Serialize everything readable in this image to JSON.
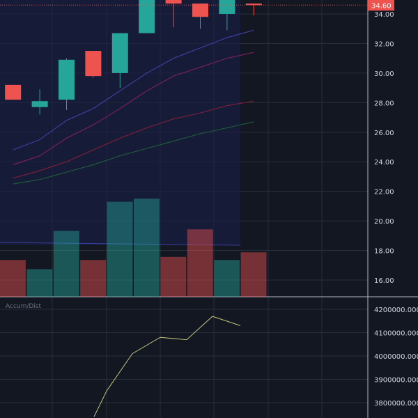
{
  "chart_data": [
    {
      "type": "candlestick",
      "ylim": [
        15,
        35
      ],
      "y_ticks": [
        "16.00",
        "18.00",
        "20.00",
        "22.00",
        "24.00",
        "26.00",
        "28.00",
        "30.00",
        "32.00",
        "34.00"
      ],
      "price_label": "34.60",
      "last_price": 34.6,
      "candles": [
        {
          "open": 29.2,
          "close": 28.2,
          "high": 29.2,
          "low": 28.2
        },
        {
          "open": 27.7,
          "close": 28.1,
          "high": 28.9,
          "low": 27.2
        },
        {
          "open": 28.2,
          "close": 30.9,
          "high": 31.0,
          "low": 27.5
        },
        {
          "open": 31.5,
          "close": 29.8,
          "high": 31.5,
          "low": 29.7
        },
        {
          "open": 30.0,
          "close": 32.7,
          "high": 32.7,
          "low": 29.0
        },
        {
          "open": 32.7,
          "close": 35.1,
          "high": 35.1,
          "low": 32.7
        },
        {
          "open": 35.0,
          "close": 34.7,
          "high": 35.1,
          "low": 33.1
        },
        {
          "open": 34.7,
          "close": 33.8,
          "high": 34.7,
          "low": 33.0
        },
        {
          "open": 34.0,
          "close": 35.0,
          "high": 35.2,
          "low": 32.9
        },
        {
          "open": 34.7,
          "close": 34.6,
          "high": 34.7,
          "low": 33.9
        }
      ],
      "volume_relative": [
        0.24,
        0.18,
        0.43,
        0.24,
        0.62,
        0.64,
        0.26,
        0.44,
        0.24,
        0.29
      ],
      "indicator_lines": [
        {
          "color": "#3b3f9c",
          "values": [
            24.8,
            25.5,
            26.8,
            27.6,
            28.8,
            30.0,
            31.0,
            31.7,
            32.4,
            32.9
          ]
        },
        {
          "color": "#7a1f5a",
          "values": [
            23.8,
            24.4,
            25.6,
            26.5,
            27.6,
            28.8,
            29.8,
            30.4,
            31.0,
            31.4
          ]
        },
        {
          "color": "#7a1f3a",
          "values": [
            22.9,
            23.4,
            24.0,
            24.8,
            25.6,
            26.3,
            26.9,
            27.3,
            27.8,
            28.1
          ]
        },
        {
          "color": "#1f5a3a",
          "values": [
            22.5,
            22.8,
            23.3,
            23.8,
            24.4,
            24.9,
            25.4,
            25.9,
            26.3,
            26.7
          ]
        }
      ],
      "colors": {
        "up": "#26a69a",
        "down": "#ef5350",
        "background": "#131722",
        "grid": "#2a2e39"
      }
    },
    {
      "type": "line",
      "title": "Accum/Dist",
      "ylim": [
        3750000,
        4220000
      ],
      "y_ticks": [
        "4200000.0000",
        "4100000.0000",
        "4000000.0000",
        "3900000.0000",
        "3800000.0000"
      ],
      "values": [
        3740000,
        3850000,
        4010000,
        4080000,
        4070000,
        4170000,
        4130000
      ],
      "color": "#c0c47a"
    }
  ]
}
